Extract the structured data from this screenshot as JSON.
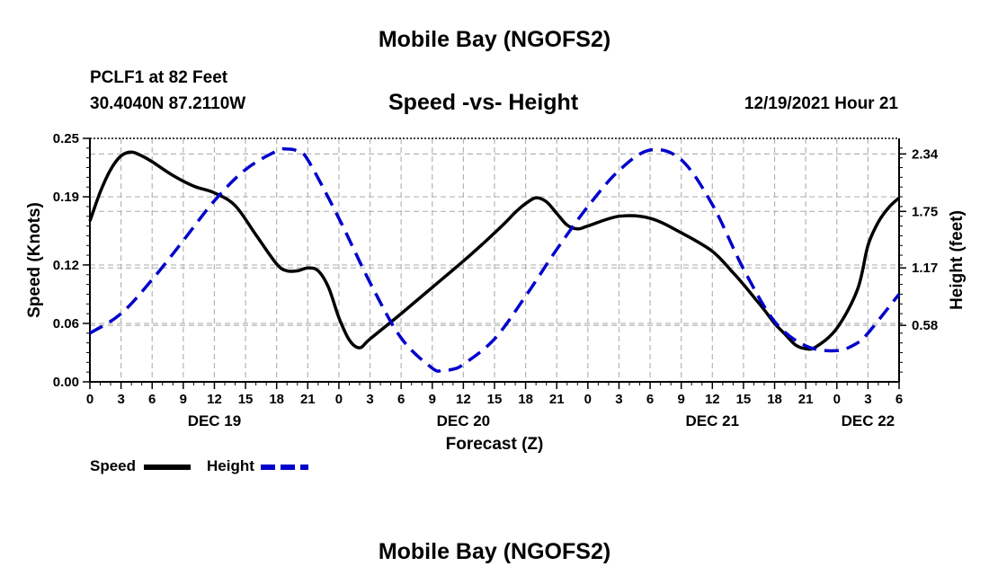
{
  "header": {
    "title": "Mobile Bay (NGOFS2)",
    "station": "PCLF1 at 82 Feet",
    "coords": "30.4040N  87.2110W",
    "subtitle": "Speed -vs- Height",
    "run_time": "12/19/2021 Hour 21"
  },
  "footer": {
    "title": "Mobile Bay (NGOFS2)"
  },
  "legend": {
    "speed_label": "Speed",
    "height_label": "Height"
  },
  "colors": {
    "speed": "#000000",
    "height": "#0000cc",
    "grid": "#b4b4b4"
  },
  "chart_data": {
    "type": "line",
    "title": "Speed -vs- Height",
    "xlabel": "Forecast (Z)",
    "ylabel": "Speed (Knots)",
    "y2label": "Height (feet)",
    "xlim": [
      0,
      78
    ],
    "ylim": [
      0,
      0.25
    ],
    "y2lim": [
      0,
      2.5
    ],
    "x_ticks": [
      0,
      3,
      6,
      9,
      12,
      15,
      18,
      21,
      24,
      27,
      30,
      33,
      36,
      39,
      42,
      45,
      48,
      51,
      54,
      57,
      60,
      63,
      66,
      69,
      72,
      75,
      78
    ],
    "x_tick_labels": [
      "0",
      "3",
      "6",
      "9",
      "12",
      "15",
      "18",
      "21",
      "0",
      "3",
      "6",
      "9",
      "12",
      "15",
      "18",
      "21",
      "0",
      "3",
      "6",
      "9",
      "12",
      "15",
      "18",
      "21",
      "0",
      "3",
      "6"
    ],
    "day_labels": [
      {
        "x": 12,
        "label": "DEC 19"
      },
      {
        "x": 36,
        "label": "DEC 20"
      },
      {
        "x": 60,
        "label": "DEC 21"
      },
      {
        "x": 75,
        "label": "DEC 22"
      }
    ],
    "y_ticks": [
      0,
      0.06,
      0.12,
      0.19,
      0.25
    ],
    "y_tick_labels": [
      "0.00",
      "0.06",
      "0.12",
      "0.19",
      "0.25"
    ],
    "y2_ticks": [
      0.58,
      1.17,
      1.75,
      2.34
    ],
    "y2_tick_labels": [
      "0.58",
      "1.17",
      "1.75",
      "2.34"
    ],
    "grid": true,
    "legend_position": "bottom-left",
    "series": [
      {
        "name": "Speed",
        "axis": "left",
        "style": "solid",
        "x": [
          0,
          1,
          2,
          3,
          4,
          5,
          6,
          8,
          10,
          12,
          14,
          16,
          18,
          19,
          20,
          21,
          22,
          23,
          24,
          25,
          26,
          27,
          30,
          33,
          36,
          38,
          40,
          41,
          42,
          43,
          44,
          45,
          46,
          47,
          48,
          51,
          54,
          57,
          60,
          62,
          63,
          64,
          65,
          66,
          67,
          68,
          69,
          70,
          72,
          74,
          75,
          76,
          77,
          78
        ],
        "values": [
          0.165,
          0.195,
          0.218,
          0.232,
          0.236,
          0.232,
          0.226,
          0.212,
          0.201,
          0.194,
          0.181,
          0.151,
          0.121,
          0.114,
          0.114,
          0.117,
          0.114,
          0.097,
          0.066,
          0.043,
          0.035,
          0.044,
          0.07,
          0.097,
          0.124,
          0.143,
          0.163,
          0.174,
          0.183,
          0.189,
          0.185,
          0.173,
          0.161,
          0.157,
          0.16,
          0.17,
          0.168,
          0.153,
          0.134,
          0.112,
          0.1,
          0.087,
          0.074,
          0.06,
          0.049,
          0.038,
          0.034,
          0.036,
          0.055,
          0.095,
          0.14,
          0.164,
          0.179,
          0.189
        ]
      },
      {
        "name": "Height",
        "axis": "right",
        "style": "dashed",
        "x": [
          0,
          3,
          6,
          9,
          12,
          15,
          18,
          19,
          20,
          21,
          24,
          27,
          30,
          33,
          34,
          35,
          36,
          39,
          42,
          45,
          48,
          51,
          54,
          57,
          60,
          63,
          66,
          69,
          72,
          74,
          75,
          78
        ],
        "values": [
          0.5,
          0.7,
          1.05,
          1.45,
          1.86,
          2.18,
          2.37,
          2.39,
          2.37,
          2.28,
          1.68,
          1.02,
          0.45,
          0.14,
          0.12,
          0.13,
          0.18,
          0.44,
          0.88,
          1.36,
          1.8,
          2.17,
          2.38,
          2.28,
          1.82,
          1.16,
          0.62,
          0.37,
          0.32,
          0.4,
          0.5,
          0.9
        ]
      }
    ]
  }
}
